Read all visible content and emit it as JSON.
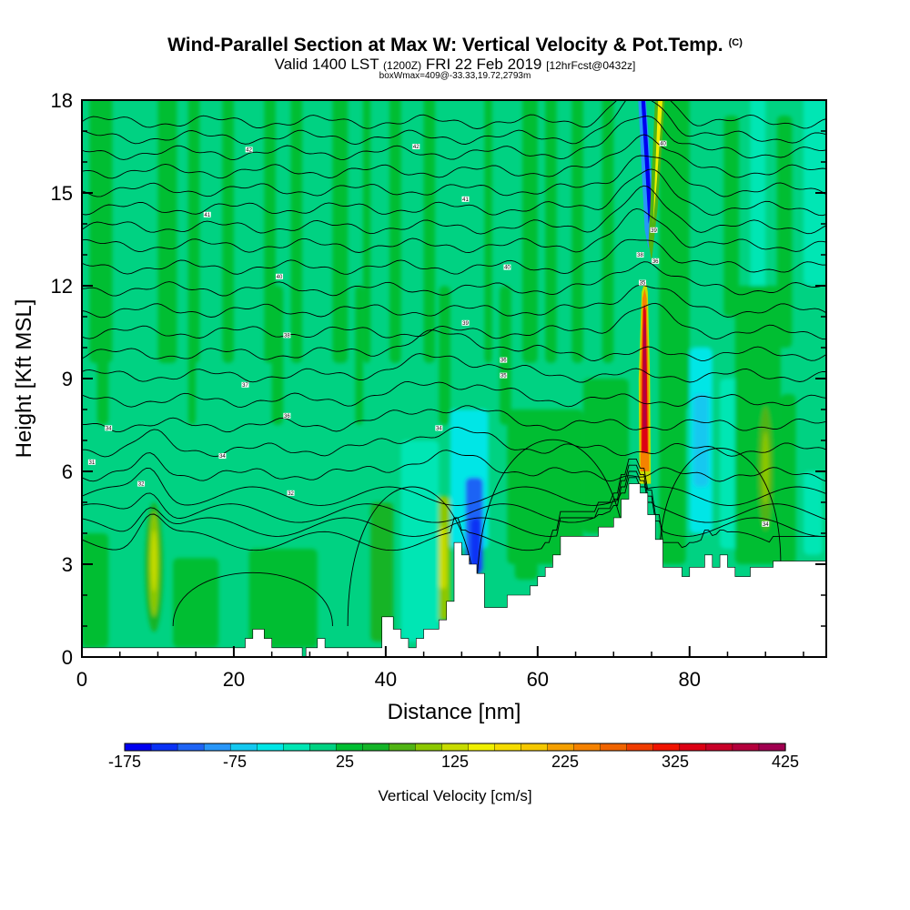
{
  "chart_data": {
    "type": "heatmap",
    "title": "Wind-Parallel Section at Max W: Vertical Velocity & Pot.Temp.",
    "title_mark": "(C)",
    "subtitle": {
      "valid_prefix": "Valid 1400 LST",
      "utc": "(1200Z)",
      "date": "FRI 22 Feb 2019",
      "forecast": "[12hrFcst@0432z]"
    },
    "box_info": "boxWmax=409@-33.33,19.72,2793m",
    "xlabel": "Distance [nm]",
    "ylabel": "Height [Kft MSL]",
    "xlim": [
      0,
      98
    ],
    "ylim": [
      0,
      18
    ],
    "xticks": [
      0,
      20,
      40,
      60,
      80
    ],
    "yticks": [
      0,
      3,
      6,
      9,
      12,
      15,
      18
    ],
    "colorbar": {
      "label": "Vertical Velocity [cm/s]",
      "min": -175,
      "max": 425,
      "ticks": [
        -175,
        -75,
        25,
        125,
        225,
        325,
        425
      ],
      "colors": [
        "#0000f0",
        "#0a32f5",
        "#1e64f5",
        "#2896f8",
        "#14c8f0",
        "#00e6e6",
        "#00e6b4",
        "#00d282",
        "#00be32",
        "#14b428",
        "#50b414",
        "#8cc800",
        "#c8dc00",
        "#f0f000",
        "#f5dc00",
        "#f5c800",
        "#f5a000",
        "#f58200",
        "#f06400",
        "#f03c00",
        "#f01400",
        "#dc0014",
        "#c80028",
        "#b4003c",
        "#a00050"
      ]
    },
    "terrain_top_kft": [
      [
        0,
        0.3
      ],
      [
        5,
        0.3
      ],
      [
        10,
        0.3
      ],
      [
        15,
        0.3
      ],
      [
        18,
        0.3
      ],
      [
        21.5,
        0.3
      ],
      [
        21.5,
        0.6
      ],
      [
        22.5,
        0.6
      ],
      [
        22.5,
        0.9
      ],
      [
        24,
        0.9
      ],
      [
        24,
        0.6
      ],
      [
        25,
        0.6
      ],
      [
        25,
        0.3
      ],
      [
        29,
        0.3
      ],
      [
        29,
        0
      ],
      [
        29.5,
        0
      ],
      [
        29.5,
        0.3
      ],
      [
        31,
        0.3
      ],
      [
        31,
        0.6
      ],
      [
        32,
        0.6
      ],
      [
        32,
        0.3
      ],
      [
        39.5,
        0.3
      ],
      [
        39.5,
        1.3
      ],
      [
        41,
        1.3
      ],
      [
        41,
        0.9
      ],
      [
        42,
        0.9
      ],
      [
        42,
        0.6
      ],
      [
        43,
        0.6
      ],
      [
        43,
        0.3
      ],
      [
        44,
        0.3
      ],
      [
        44,
        0.6
      ],
      [
        45,
        0.6
      ],
      [
        45,
        0.9
      ],
      [
        47,
        0.9
      ],
      [
        47,
        1.2
      ],
      [
        48,
        1.2
      ],
      [
        48,
        1.8
      ],
      [
        49,
        1.8
      ],
      [
        49,
        3.7
      ],
      [
        50,
        3.7
      ],
      [
        50,
        3.3
      ],
      [
        51,
        3.3
      ],
      [
        51,
        3.0
      ],
      [
        52,
        3.0
      ],
      [
        52,
        2.7
      ],
      [
        53,
        2.7
      ],
      [
        53,
        1.6
      ],
      [
        56,
        1.6
      ],
      [
        56,
        2.0
      ],
      [
        59,
        2.0
      ],
      [
        59,
        2.3
      ],
      [
        60,
        2.3
      ],
      [
        60,
        2.6
      ],
      [
        61,
        2.6
      ],
      [
        61,
        2.9
      ],
      [
        62,
        2.9
      ],
      [
        62,
        3.3
      ],
      [
        63,
        3.3
      ],
      [
        63,
        3.9
      ],
      [
        68,
        3.9
      ],
      [
        68,
        4.2
      ],
      [
        70,
        4.2
      ],
      [
        70,
        4.5
      ],
      [
        71,
        4.5
      ],
      [
        71,
        5.1
      ],
      [
        72,
        5.1
      ],
      [
        72,
        5.6
      ],
      [
        73.5,
        5.6
      ],
      [
        73.5,
        5.3
      ],
      [
        74.5,
        5.3
      ],
      [
        74.5,
        4.6
      ],
      [
        75.5,
        4.6
      ],
      [
        75.5,
        3.8
      ],
      [
        76.5,
        3.8
      ],
      [
        76.5,
        2.9
      ],
      [
        79,
        2.9
      ],
      [
        79,
        2.6
      ],
      [
        80,
        2.6
      ],
      [
        80,
        2.9
      ],
      [
        82,
        2.9
      ],
      [
        82,
        3.3
      ],
      [
        83,
        3.3
      ],
      [
        83,
        2.9
      ],
      [
        84,
        2.9
      ],
      [
        84,
        3.3
      ],
      [
        85,
        3.3
      ],
      [
        85,
        2.9
      ],
      [
        86,
        2.9
      ],
      [
        86,
        2.6
      ],
      [
        88,
        2.6
      ],
      [
        88,
        2.9
      ],
      [
        91,
        2.9
      ],
      [
        91,
        3.1
      ],
      [
        98,
        3.1
      ]
    ],
    "theta_contours_kft": [
      {
        "h": 17.3,
        "label": "44"
      },
      {
        "h": 16.8,
        "label": "43"
      },
      {
        "h": 16.3,
        "label": "42"
      },
      {
        "h": 15.7,
        "label": "41"
      },
      {
        "h": 15.1,
        "label": "40"
      },
      {
        "h": 14.5,
        "label": "39"
      },
      {
        "h": 13.9,
        "label": "38"
      },
      {
        "h": 13.3,
        "label": "37"
      },
      {
        "h": 12.6,
        "label": "36"
      },
      {
        "h": 11.9,
        "label": "35"
      },
      {
        "h": 11.2,
        "label": "34"
      },
      {
        "h": 10.5,
        "label": "33"
      },
      {
        "h": 9.8,
        "label": "32"
      },
      {
        "h": 9.1,
        "label": "31"
      },
      {
        "h": 8.3,
        "label": "30"
      },
      {
        "h": 7.5,
        "label": "29"
      },
      {
        "h": 6.7,
        "label": "28"
      },
      {
        "h": 5.9,
        "label": "27"
      }
    ],
    "contour_labels": [
      {
        "x": 22,
        "y": 16.4,
        "text": "42"
      },
      {
        "x": 44,
        "y": 16.5,
        "text": "42"
      },
      {
        "x": 16.5,
        "y": 14.3,
        "text": "41"
      },
      {
        "x": 50.5,
        "y": 14.8,
        "text": "41"
      },
      {
        "x": 26,
        "y": 12.3,
        "text": "40"
      },
      {
        "x": 56,
        "y": 12.6,
        "text": "40"
      },
      {
        "x": 27,
        "y": 10.4,
        "text": "38"
      },
      {
        "x": 50.5,
        "y": 10.8,
        "text": "39"
      },
      {
        "x": 21.5,
        "y": 8.8,
        "text": "37"
      },
      {
        "x": 55.5,
        "y": 9.6,
        "text": "36"
      },
      {
        "x": 55.5,
        "y": 9.1,
        "text": "35"
      },
      {
        "x": 27,
        "y": 7.8,
        "text": "36"
      },
      {
        "x": 3.5,
        "y": 7.4,
        "text": "34"
      },
      {
        "x": 47,
        "y": 7.4,
        "text": "34"
      },
      {
        "x": 18.5,
        "y": 6.5,
        "text": "34"
      },
      {
        "x": 1.3,
        "y": 6.3,
        "text": "31"
      },
      {
        "x": 7.8,
        "y": 5.6,
        "text": "32"
      },
      {
        "x": 27.5,
        "y": 5.3,
        "text": "32"
      },
      {
        "x": 73.5,
        "y": 13.0,
        "text": "38"
      },
      {
        "x": 75.5,
        "y": 12.8,
        "text": "36"
      },
      {
        "x": 75.3,
        "y": 13.8,
        "text": "39"
      },
      {
        "x": 76.5,
        "y": 16.6,
        "text": "40"
      },
      {
        "x": 73.8,
        "y": 12.1,
        "text": "35"
      },
      {
        "x": 90,
        "y": 4.3,
        "text": "34"
      }
    ],
    "features": [
      {
        "name": "updraft-core",
        "x_range": [
          73.5,
          74.8
        ],
        "y_range": [
          5.5,
          11.8
        ],
        "peak_cm_s": 409
      },
      {
        "name": "downdraft-band",
        "x_range": [
          73.5,
          76
        ],
        "y_range": [
          12,
          18
        ],
        "min_cm_s": -175
      },
      {
        "name": "updraft-lower-left",
        "x_range": [
          8.5,
          10.5
        ],
        "y_range": [
          0.9,
          4.6
        ],
        "peak_cm_s": 110
      },
      {
        "name": "downdraft-mid",
        "x_range": [
          50.5,
          53
        ],
        "y_range": [
          2.6,
          6
        ],
        "min_cm_s": -150
      },
      {
        "name": "updraft-right",
        "x_range": [
          89.5,
          90.5
        ],
        "y_range": [
          4.2,
          8
        ],
        "peak_cm_s": 100
      }
    ]
  }
}
